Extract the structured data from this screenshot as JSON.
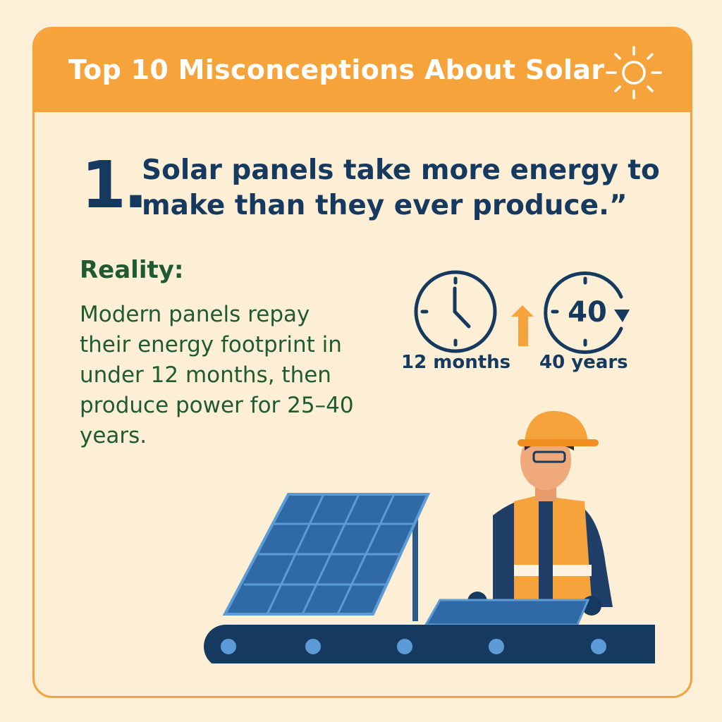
{
  "header": {
    "title": "Top 10 Misconceptions About Solar",
    "icon": "sun-icon"
  },
  "myth": {
    "number": "1.",
    "text": "Solar panels take more energy to make than they ever produce.”"
  },
  "reality": {
    "heading": "Reality:",
    "text": "Modern panels repay their energy footprint in under 12 months, then produce power for 25–40 years."
  },
  "stats": {
    "left_label": "12 months",
    "right_label": "40 years",
    "right_icon_number": "40"
  },
  "colors": {
    "accent": "#f7a33c",
    "navy": "#163a5f",
    "green": "#1f5a30",
    "background": "#fcefd5"
  }
}
